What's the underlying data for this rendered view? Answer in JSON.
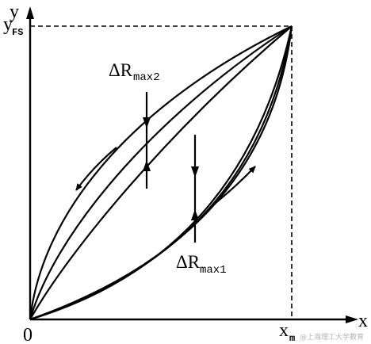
{
  "labels": {
    "y_axis": "y",
    "x_axis": "x",
    "origin": "0",
    "y_fs_main": "y",
    "y_fs_sub": "FS",
    "x_m_main": "x",
    "x_m_sub": "m",
    "delta_rmax2_main": "ΔR",
    "delta_rmax2_sub": "max2",
    "delta_rmax1_main": "ΔR",
    "delta_rmax1_sub": "max1"
  },
  "watermark": "@上海理工大学教育"
}
